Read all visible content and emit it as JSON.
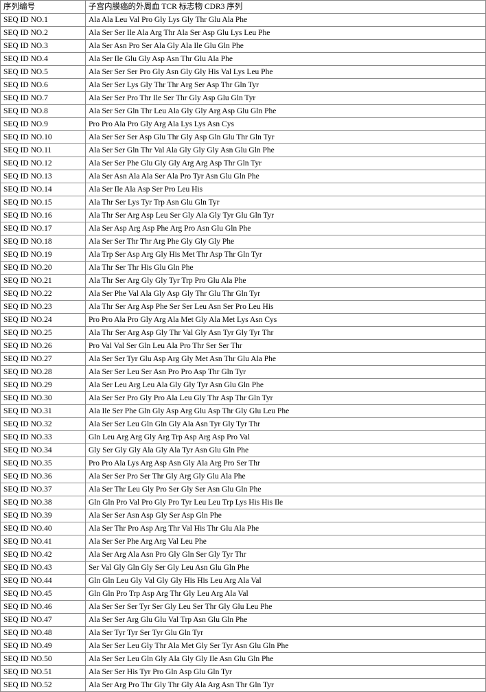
{
  "table": {
    "header": {
      "col1": "序列编号",
      "col2": "子宫内膜癌的外周血 TCR 标志物 CDR3 序列"
    },
    "rows": [
      {
        "id": "SEQ ID NO.1",
        "seq": "Ala Ala Leu Val Pro Gly Lys Gly Thr Glu Ala Phe"
      },
      {
        "id": "SEQ ID NO.2",
        "seq": "Ala Ser Ser Ile Ala Arg Thr Ala Ser Asp Glu Lys Leu Phe"
      },
      {
        "id": "SEQ ID NO.3",
        "seq": "Ala Ser Asn Pro Ser Ala Gly Ala Ile Glu Gln Phe"
      },
      {
        "id": "SEQ ID NO.4",
        "seq": "Ala Ser Ile Glu Gly Asp Asn Thr Glu Ala Phe"
      },
      {
        "id": "SEQ ID NO.5",
        "seq": "Ala Ser Ser Ser Pro Gly Asn Gly Gly His Val Lys Leu Phe"
      },
      {
        "id": "SEQ ID NO.6",
        "seq": "Ala Ser Ser Lys Gly Thr Thr Arg Ser Asp Thr Gln Tyr"
      },
      {
        "id": "SEQ ID NO.7",
        "seq": "Ala Ser Ser Pro Thr Ile Ser Thr Gly Asp Glu Gln Tyr"
      },
      {
        "id": "SEQ ID NO.8",
        "seq": "Ala Ser Ser Gln Thr Leu Ala Gly Gly Arg Asp Glu Gln Phe"
      },
      {
        "id": "SEQ ID NO.9",
        "seq": "Pro Pro Ala Pro Gly Arg Ala Lys Lys Asn Cys"
      },
      {
        "id": "SEQ ID NO.10",
        "seq": "Ala Ser Ser Ser Asp Glu Thr Gly Asp Gln Glu Thr Gln Tyr"
      },
      {
        "id": "SEQ ID NO.11",
        "seq": "Ala Ser Ser Gln Thr Val Ala Gly Gly Gly Asn Glu Gln Phe"
      },
      {
        "id": "SEQ ID NO.12",
        "seq": "Ala Ser Ser Phe Glu Gly Gly Arg Arg Asp Thr Gln Tyr"
      },
      {
        "id": "SEQ ID NO.13",
        "seq": "Ala Ser Asn Ala Ala Ser Ala Pro Tyr Asn Glu Gln Phe"
      },
      {
        "id": "SEQ ID NO.14",
        "seq": "Ala Ser Ile Ala Asp Ser Pro Leu His"
      },
      {
        "id": "SEQ ID NO.15",
        "seq": "Ala Thr Ser Lys Tyr Trp Asn Glu Gln Tyr"
      },
      {
        "id": "SEQ ID NO.16",
        "seq": "Ala Thr Ser Arg Asp Leu Ser Gly Ala Gly Tyr Glu Gln Tyr"
      },
      {
        "id": "SEQ ID NO.17",
        "seq": "Ala Ser Asp Arg Asp Phe Arg Pro Asn Glu Gln Phe"
      },
      {
        "id": "SEQ ID NO.18",
        "seq": "Ala Ser Ser Thr Thr Arg Phe Gly Gly Gly Phe"
      },
      {
        "id": "SEQ ID NO.19",
        "seq": "Ala Trp Ser Asp Arg Gly His Met Thr Asp Thr Gln Tyr"
      },
      {
        "id": "SEQ ID NO.20",
        "seq": "Ala Thr Ser Thr His Glu Gln Phe"
      },
      {
        "id": "SEQ ID NO.21",
        "seq": "Ala Thr Ser Arg Gly Gly Tyr Trp Pro Glu Ala Phe"
      },
      {
        "id": "SEQ ID NO.22",
        "seq": "Ala Ser Phe Val Ala Gly Asp Gly Thr Glu Thr Gln Tyr"
      },
      {
        "id": "SEQ ID NO.23",
        "seq": "Ala Thr Ser Arg Asp Phe Ser Ser Leu Asn Ser Pro Leu His"
      },
      {
        "id": "SEQ ID NO.24",
        "seq": "Pro Pro Ala Pro Gly Arg Ala Met Gly Ala Met Lys Asn Cys"
      },
      {
        "id": "SEQ ID NO.25",
        "seq": "Ala Thr Ser Arg Asp Gly Thr Val Gly Asn Tyr Gly Tyr Thr"
      },
      {
        "id": "SEQ ID NO.26",
        "seq": "Pro Val Val Ser Gln Leu Ala Pro Thr Ser Ser Thr"
      },
      {
        "id": "SEQ ID NO.27",
        "seq": "Ala Ser Ser Tyr Glu Asp Arg Gly Met Asn Thr Glu Ala Phe"
      },
      {
        "id": "SEQ ID NO.28",
        "seq": "Ala Ser Ser Leu Ser Asn Pro Pro Asp Thr Gln Tyr"
      },
      {
        "id": "SEQ ID NO.29",
        "seq": "Ala Ser Leu Arg Leu Ala Gly Gly Tyr Asn Glu Gln Phe"
      },
      {
        "id": "SEQ ID NO.30",
        "seq": "Ala Ser Ser Pro Gly Pro Ala Leu Gly Thr Asp Thr Gln Tyr"
      },
      {
        "id": "SEQ ID NO.31",
        "seq": "Ala Ile Ser Phe Gln Gly Asp Arg Glu Asp Thr Gly Glu Leu Phe"
      },
      {
        "id": "SEQ ID NO.32",
        "seq": "Ala Ser Ser Leu Gln Gln Gly Ala Asn Tyr Gly Tyr Thr"
      },
      {
        "id": "SEQ ID NO.33",
        "seq": "Gln Leu Arg Arg Gly Arg Trp Asp Arg Asp Pro Val"
      },
      {
        "id": "SEQ ID NO.34",
        "seq": "Gly Ser Gly Gly Ala Gly Ala Tyr Asn Glu Gln Phe"
      },
      {
        "id": "SEQ ID NO.35",
        "seq": "Pro Pro Ala Lys Arg Asp Asn Gly Ala Arg Pro Ser Thr"
      },
      {
        "id": "SEQ ID NO.36",
        "seq": "Ala Ser Ser Pro Ser Thr Gly Arg Gly Glu Ala Phe"
      },
      {
        "id": "SEQ ID NO.37",
        "seq": "Ala Ser Thr Leu Gly Pro Ser Gly Ser Asn Glu Gln Phe"
      },
      {
        "id": "SEQ ID NO.38",
        "seq": "Gln Gln Pro Val Pro Gly Pro Tyr Leu Leu Trp Lys His His Ile"
      },
      {
        "id": "SEQ ID NO.39",
        "seq": "Ala Ser Ser Asn Asp Gly Ser Asp Gln Phe"
      },
      {
        "id": "SEQ ID NO.40",
        "seq": "Ala Ser Thr Pro Asp Arg Thr Val His Thr Glu Ala Phe"
      },
      {
        "id": "SEQ ID NO.41",
        "seq": "Ala Ser Ser Phe Arg Arg Val Leu Phe"
      },
      {
        "id": "SEQ ID NO.42",
        "seq": "Ala Ser Arg Ala Asn Pro Gly Gln Ser Gly Tyr Thr"
      },
      {
        "id": "SEQ ID NO.43",
        "seq": "Ser Val Gly Gln Gly Ser Gly Leu Asn Glu Gln Phe"
      },
      {
        "id": "SEQ ID NO.44",
        "seq": "Gln Gln Leu Gly Val Gly Gly His His Leu Arg Ala Val"
      },
      {
        "id": "SEQ ID NO.45",
        "seq": "Gln Gln Pro Trp Asp Arg Thr Gly Leu Arg Ala Val"
      },
      {
        "id": "SEQ ID NO.46",
        "seq": "Ala Ser Ser Ser Tyr Ser Gly Leu Ser Thr Gly Glu Leu Phe"
      },
      {
        "id": "SEQ ID NO.47",
        "seq": "Ala Ser Ser Arg Glu Glu Val Trp Asn Glu Gln Phe"
      },
      {
        "id": "SEQ ID NO.48",
        "seq": "Ala Ser Tyr Tyr Ser Tyr Glu Gln Tyr"
      },
      {
        "id": "SEQ ID NO.49",
        "seq": "Ala Ser Ser Leu Gly Thr Ala Met Gly Ser Tyr Asn Glu Gln Phe"
      },
      {
        "id": "SEQ ID NO.50",
        "seq": "Ala Ser Ser Leu Gln Gly Ala Gly Gly Ile Asn Glu Gln Phe"
      },
      {
        "id": "SEQ ID NO.51",
        "seq": "Ala Ser Ser His Tyr Pro Gln Asp Glu Gln Tyr"
      },
      {
        "id": "SEQ ID NO.52",
        "seq": "Ala Ser Arg Pro Thr Gly Thr Gly Ala Arg Asn Thr Gln Tyr"
      }
    ],
    "border_color": "#888888",
    "text_color": "#000000",
    "background_color": "#ffffff",
    "font_size_pt": 9
  }
}
